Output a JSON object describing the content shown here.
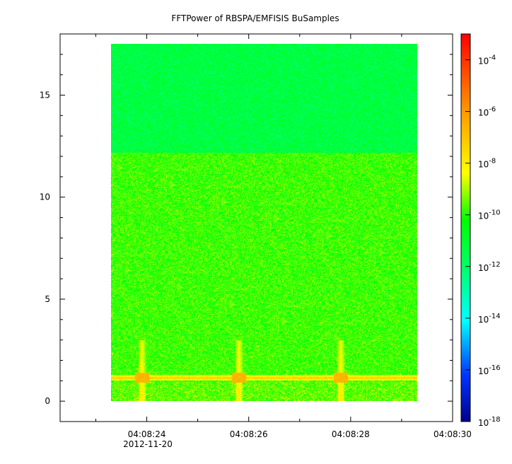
{
  "chart_data": {
    "type": "heatmap",
    "title": "FFTPower of RBSPA/EMFISIS  BuSamples",
    "xlabel": "",
    "ylabel": "",
    "x_axis": {
      "type": "time",
      "range": [
        "04:08:22.3",
        "04:08:30.0"
      ],
      "major_ticks": [
        "04:08:24",
        "04:08:26",
        "04:08:28",
        "04:08:30"
      ],
      "date_label": "2012-11-20"
    },
    "y_axis": {
      "range": [
        -1,
        18
      ],
      "ticks": [
        0,
        5,
        10,
        15
      ]
    },
    "data_extent": {
      "x": [
        "04:08:23.3",
        "04:08:29.3"
      ],
      "y": [
        0,
        17.5
      ]
    },
    "colorbar": {
      "scale": "log",
      "range": [
        1e-18,
        0.001
      ],
      "tick_labels": [
        {
          "base": "10",
          "exp": "-4"
        },
        {
          "base": "10",
          "exp": "-6"
        },
        {
          "base": "10",
          "exp": "-8"
        },
        {
          "base": "10",
          "exp": "-10"
        },
        {
          "base": "10",
          "exp": "-12"
        },
        {
          "base": "10",
          "exp": "-14"
        },
        {
          "base": "10",
          "exp": "-16"
        },
        {
          "base": "10",
          "exp": "-18"
        }
      ],
      "tick_values": [
        0.0001,
        1e-06,
        1e-08,
        1e-10,
        1e-12,
        1e-14,
        1e-16,
        1e-18
      ],
      "colormap": "rainbow (blue-cyan-green-yellow-red)"
    },
    "features": [
      {
        "description": "high-frequency region above 12.2 has lower power",
        "y_range": [
          12.2,
          17.5
        ],
        "power": 1e-12
      },
      {
        "description": "region below 12.2 power",
        "y_range": [
          0,
          12.2
        ],
        "power": 1e-10
      },
      {
        "description": "persistent narrowband line",
        "y": 1.15,
        "power": 1e-07
      },
      {
        "description": "broadband bursts",
        "x": [
          "04:08:23.9",
          "04:08:25.8",
          "04:08:27.8"
        ],
        "y_range": [
          0,
          3.0
        ],
        "power": 1e-08
      }
    ]
  }
}
